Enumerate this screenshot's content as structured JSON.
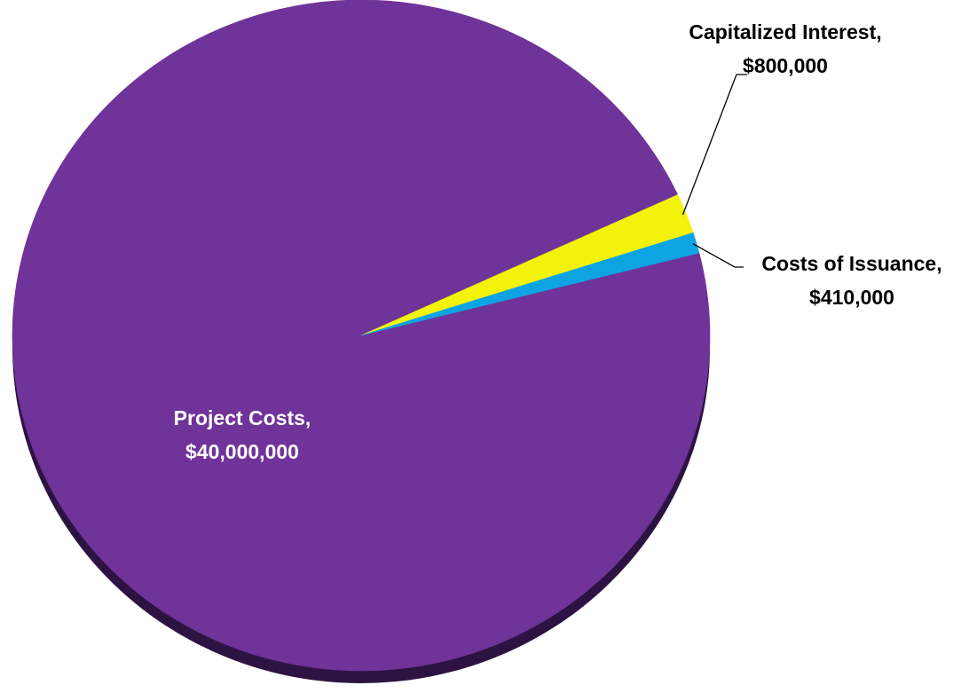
{
  "chart_data": {
    "type": "pie",
    "title": "",
    "legend": "none",
    "slices": [
      {
        "name": "Project Costs",
        "value": 40000000,
        "label": "Project Costs,",
        "value_label": "$40,000,000",
        "color": "#703399",
        "label_color": "#ffffff",
        "label_placement": "inside"
      },
      {
        "name": "Capitalized Interest",
        "value": 800000,
        "label": "Capitalized Interest,",
        "value_label": "$800,000",
        "color": "#f2f20a",
        "label_color": "#000000",
        "label_placement": "outside-top"
      },
      {
        "name": "Costs of Issuance",
        "value": 410000,
        "label": "Costs of Issuance,",
        "value_label": "$410,000",
        "color": "#0ea4e3",
        "label_color": "#000000",
        "label_placement": "outside-right"
      }
    ],
    "shadow_color": "#2d1342",
    "start_angle_deg": -24.8
  }
}
